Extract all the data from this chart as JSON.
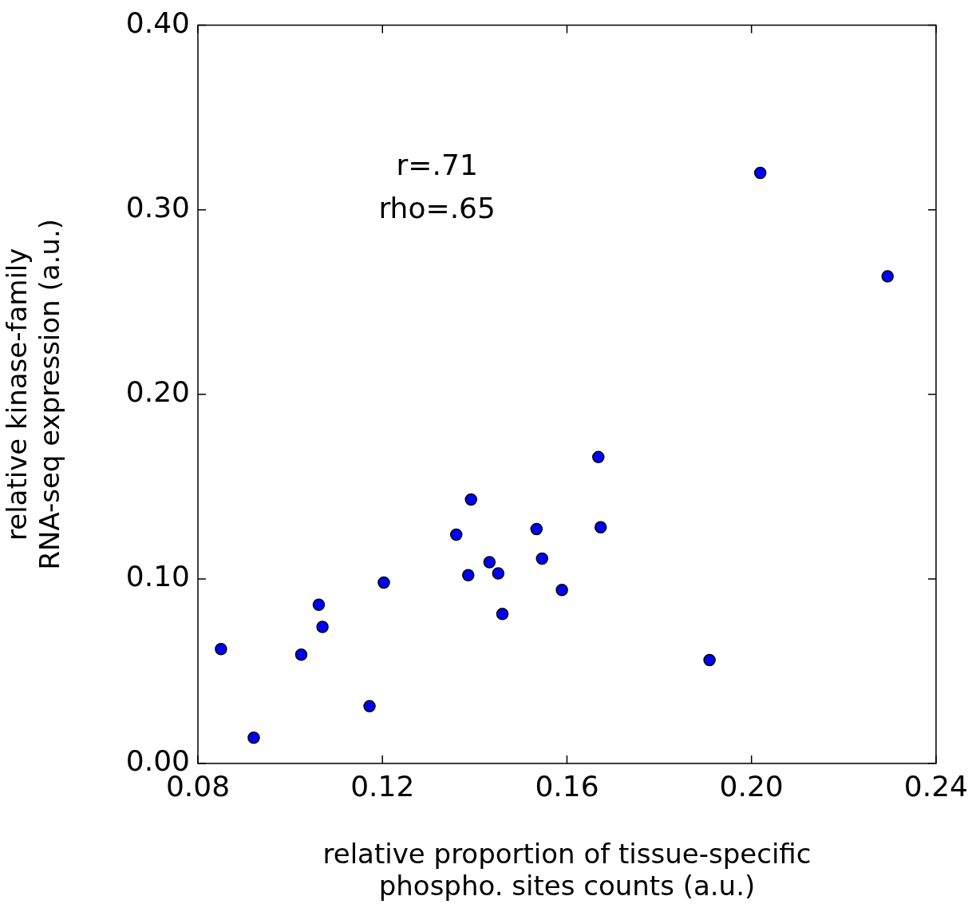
{
  "chart_data": {
    "type": "scatter",
    "xlabel": "relative proportion of tissue-specific\nphospho. sites counts (a.u.)",
    "ylabel": "relative kinase-family\nRNA-seq expression (a.u.)",
    "annotations": [
      "r=.71",
      "rho=.65"
    ],
    "x": [
      0.085,
      0.0921,
      0.1024,
      0.1062,
      0.107,
      0.1172,
      0.1203,
      0.136,
      0.1386,
      0.1392,
      0.1432,
      0.1451,
      0.146,
      0.1534,
      0.1546,
      0.1589,
      0.1668,
      0.1673,
      0.1909,
      0.2019,
      0.2295
    ],
    "series": [
      {
        "color": "#0000ff",
        "values": [
          0.062,
          0.014,
          0.059,
          0.086,
          0.074,
          0.031,
          0.098,
          0.124,
          0.102,
          0.143,
          0.109,
          0.103,
          0.081,
          0.127,
          0.111,
          0.094,
          0.166,
          0.128,
          0.056,
          0.32,
          0.264
        ]
      }
    ],
    "xlim": [
      0.08,
      0.24
    ],
    "xticks": [
      {
        "value": 0.08,
        "label": "0.08"
      },
      {
        "value": 0.12,
        "label": "0.12"
      },
      {
        "value": 0.16,
        "label": "0.16"
      },
      {
        "value": 0.2,
        "label": "0.20"
      },
      {
        "value": 0.24,
        "label": "0.24"
      }
    ],
    "ylim": [
      0,
      0.4
    ],
    "yticks": [
      {
        "value": 0,
        "label": "0.00"
      },
      {
        "value": 0.1,
        "label": "0.10"
      },
      {
        "value": 0.2,
        "label": "0.20"
      },
      {
        "value": 0.3,
        "label": "0.30"
      },
      {
        "value": 0.4,
        "label": "0.40"
      }
    ],
    "grid": false,
    "legend": false,
    "marker": "circle"
  }
}
